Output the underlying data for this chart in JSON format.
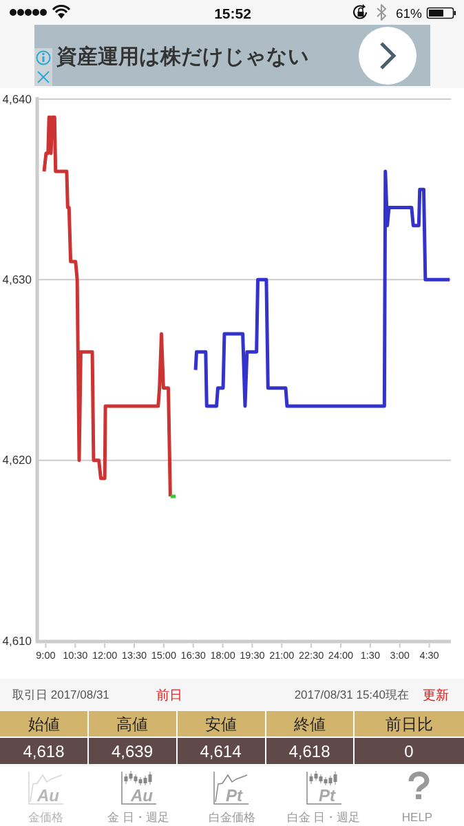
{
  "chart_data": {
    "type": "line",
    "series": [
      {
        "color": "#cc3333",
        "x": [
          "2017-08-31T08:55",
          "2017-08-31T09:01",
          "2017-08-31T09:07",
          "2017-08-31T09:10",
          "2017-08-31T09:13",
          "2017-08-31T09:16",
          "2017-08-31T09:20",
          "2017-08-31T09:27",
          "2017-08-31T09:30",
          "2017-08-31T10:04",
          "2017-08-31T10:07",
          "2017-08-31T10:11",
          "2017-08-31T10:16",
          "2017-08-31T10:31",
          "2017-08-31T10:36",
          "2017-08-31T10:42",
          "2017-08-31T10:47",
          "2017-08-31T11:22",
          "2017-08-31T11:26",
          "2017-08-31T11:42",
          "2017-08-31T11:48",
          "2017-08-31T12:00",
          "2017-08-31T12:02",
          "2017-08-31T14:43",
          "2017-08-31T14:47",
          "2017-08-31T14:53",
          "2017-08-31T14:59",
          "2017-08-31T15:14",
          "2017-08-31T15:20"
        ],
        "values": [
          4636,
          4637,
          4637,
          4639,
          4639,
          4637,
          4639,
          4639,
          4636,
          4636,
          4634,
          4634,
          4631,
          4631,
          4630,
          4620,
          4626,
          4626,
          4620,
          4620,
          4619,
          4619,
          4623,
          4623,
          4624,
          4627,
          4624,
          4624,
          4618
        ]
      },
      {
        "color": "#3333cc",
        "x": [
          "2017-08-31T16:37",
          "2017-08-31T16:40",
          "2017-08-31T17:08",
          "2017-08-31T17:11",
          "2017-08-31T17:41",
          "2017-08-31T17:45",
          "2017-08-31T18:01",
          "2017-08-31T18:05",
          "2017-08-31T19:01",
          "2017-08-31T19:08",
          "2017-08-31T19:14",
          "2017-08-31T19:43",
          "2017-08-31T19:47",
          "2017-08-31T20:13",
          "2017-08-31T20:18",
          "2017-08-31T21:12",
          "2017-08-31T21:16",
          "2017-09-01T02:13",
          "2017-09-01T02:16",
          "2017-09-01T02:22",
          "2017-09-01T02:27",
          "2017-09-01T03:36",
          "2017-09-01T03:41",
          "2017-09-01T03:58",
          "2017-09-01T04:01",
          "2017-09-01T04:13",
          "2017-09-01T04:18",
          "2017-09-01T05:32"
        ],
        "values": [
          4625,
          4626,
          4626,
          4623,
          4623,
          4624,
          4624,
          4627,
          4627,
          4623,
          4626,
          4626,
          4630,
          4630,
          4624,
          4624,
          4623,
          4623,
          4636,
          4633,
          4634,
          4634,
          4633,
          4633,
          4635,
          4635,
          4630,
          4630
        ]
      },
      {
        "color": "#33cc33",
        "x": [
          "2017-08-31T15:21",
          "2017-08-31T15:36"
        ],
        "values": [
          4618,
          4618
        ]
      }
    ],
    "xlim": [
      "2017-08-31T08:36",
      "2017-09-01T05:36"
    ],
    "xticks": [
      {
        "value": "2017-08-31T09:00",
        "label": "9:00"
      },
      {
        "value": "2017-08-31T10:30",
        "label": "10:30"
      },
      {
        "value": "2017-08-31T12:00",
        "label": "12:00"
      },
      {
        "value": "2017-08-31T13:30",
        "label": "13:30"
      },
      {
        "value": "2017-08-31T15:00",
        "label": "15:00"
      },
      {
        "value": "2017-08-31T16:30",
        "label": "16:30"
      },
      {
        "value": "2017-08-31T18:00",
        "label": "18:00"
      },
      {
        "value": "2017-08-31T19:30",
        "label": "19:30"
      },
      {
        "value": "2017-08-31T21:00",
        "label": "21:00"
      },
      {
        "value": "2017-08-31T22:30",
        "label": "22:30"
      },
      {
        "value": "2017-08-31T24:00",
        "label": "24:00"
      },
      {
        "value": "2017-09-01T01:30",
        "label": "1:30"
      },
      {
        "value": "2017-09-01T03:00",
        "label": "3:00"
      },
      {
        "value": "2017-09-01T04:30",
        "label": "4:30"
      }
    ],
    "ylim": [
      4610,
      4640
    ],
    "yticks": [
      {
        "value": 4610,
        "label": "4,610"
      },
      {
        "value": 4620,
        "label": "4,620"
      },
      {
        "value": 4630,
        "label": "4,630"
      },
      {
        "value": 4640,
        "label": "4,640"
      }
    ],
    "grid": "y",
    "annotations": [
      "15:52",
      "61%",
      "資産運用は株だけじゃない",
      "取引日 2017/08/31",
      "前日",
      "2017/08/31 15:40現在",
      "更新",
      "始値",
      "高値",
      "安値",
      "終値",
      "前日比",
      "4,618",
      "4,639",
      "4,614",
      "4,618",
      "0",
      "Au",
      "金価格",
      "Au",
      "金 日・週足",
      "Pt",
      "白金価格",
      "Pt",
      "白金 日・週足",
      "HELP"
    ]
  }
}
